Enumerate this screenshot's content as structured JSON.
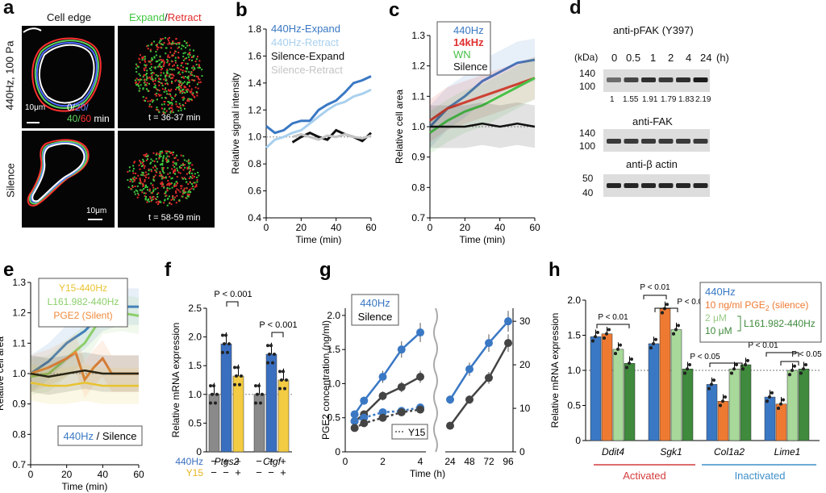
{
  "panels": {
    "a": {
      "letter": "a",
      "col_cell_edge": "Cell edge",
      "col_expand": "Expand",
      "slash": "/",
      "col_retract": "Retract",
      "row1_label": "440Hz, 100 Pa",
      "row2_label": "Silence",
      "scale1": "10μm",
      "scale2": "10μm",
      "time1": "0/",
      "time2": "20/",
      "time3": "40/",
      "time4": "60",
      "time_unit": " min",
      "t1": "t = 36-37 min",
      "t2": "t = 58-59 min",
      "colors": {
        "t0": "#ffffff",
        "t20": "#4f6bff",
        "t40": "#5fd35f",
        "t60": "#ff3030",
        "expand": "#3ec83e",
        "retract": "#e22b2b"
      }
    },
    "d": {
      "letter": "d",
      "antibody1": "anti-pFAK (Y397)",
      "kda": "(kDa)",
      "times": [
        "0",
        "0.5",
        "1",
        "2",
        "4",
        "24"
      ],
      "time_unit": "(h)",
      "mw_top": [
        "140",
        "100"
      ],
      "quant": [
        "1",
        "1.55",
        "1.91",
        "1.79",
        "1.83",
        "2.19"
      ],
      "antibody2": "anti-FAK",
      "mw_mid": [
        "140",
        "100"
      ],
      "antibody3": "anti-β actin",
      "mw_bot": [
        "50",
        "40"
      ]
    },
    "letters": {
      "b": "b",
      "c": "c",
      "e": "e",
      "f": "f",
      "g": "g",
      "h": "h"
    }
  },
  "chart_data": [
    {
      "panel": "b",
      "type": "line",
      "xlabel": "Time (min)",
      "ylabel": "Relative signal intensity",
      "xlim": [
        0,
        60
      ],
      "ylim": [
        0.4,
        1.8
      ],
      "xticks": [
        0,
        20,
        40,
        60
      ],
      "yticks": [
        0.4,
        0.6,
        0.8,
        1.0,
        1.2,
        1.4,
        1.6,
        1.8
      ],
      "legend": [
        "440Hz-Expand",
        "440Hz-Retract",
        "Silence-Expand",
        "Silence-Retract"
      ],
      "series": [
        {
          "name": "440Hz-Expand",
          "color": "#3a78c4",
          "x": [
            0,
            5,
            10,
            15,
            20,
            25,
            30,
            35,
            40,
            45,
            50,
            55,
            60
          ],
          "values": [
            1.08,
            1.03,
            1.05,
            1.1,
            1.12,
            1.12,
            1.2,
            1.24,
            1.27,
            1.33,
            1.4,
            1.42,
            1.45
          ]
        },
        {
          "name": "440Hz-Retract",
          "color": "#a9d0ee",
          "x": [
            0,
            5,
            10,
            15,
            20,
            25,
            30,
            35,
            40,
            45,
            50,
            55,
            60
          ],
          "values": [
            0.92,
            0.98,
            1.0,
            1.03,
            1.05,
            1.1,
            1.15,
            1.2,
            1.24,
            1.26,
            1.3,
            1.32,
            1.35
          ]
        },
        {
          "name": "Silence-Expand",
          "color": "#111111",
          "x": [
            15,
            20,
            25,
            30,
            35,
            40,
            45,
            50,
            55,
            60
          ],
          "values": [
            0.96,
            1.0,
            1.03,
            1.0,
            0.98,
            1.05,
            1.02,
            1.0,
            0.97,
            1.03
          ]
        },
        {
          "name": "Silence-Retract",
          "color": "#c4c4c4",
          "x": [
            15,
            20,
            25,
            30,
            35,
            40,
            45,
            50,
            55,
            60
          ],
          "values": [
            1.0,
            1.02,
            1.0,
            0.98,
            1.01,
            1.0,
            1.02,
            1.0,
            0.99,
            1.01
          ]
        }
      ]
    },
    {
      "panel": "c",
      "type": "line",
      "xlabel": "Time (min)",
      "ylabel": "Relative cell area",
      "xlim": [
        0,
        60
      ],
      "ylim": [
        0.7,
        1.3
      ],
      "xticks": [
        0,
        20,
        40,
        60
      ],
      "yticks": [
        0.7,
        0.8,
        0.9,
        1.0,
        1.1,
        1.2,
        1.3
      ],
      "legend": [
        "440Hz",
        "14kHz",
        "WN",
        "Silence"
      ],
      "series": [
        {
          "name": "440Hz",
          "color": "#3a78c4",
          "x": [
            0,
            10,
            20,
            30,
            40,
            50,
            60
          ],
          "values": [
            1.0,
            1.06,
            1.1,
            1.15,
            1.18,
            1.21,
            1.22
          ]
        },
        {
          "name": "14kHz",
          "color": "#e03030",
          "x": [
            0,
            10,
            20,
            30,
            40,
            50,
            60
          ],
          "values": [
            1.02,
            1.06,
            1.08,
            1.1,
            1.12,
            1.14,
            1.16
          ]
        },
        {
          "name": "WN",
          "color": "#48c048",
          "x": [
            0,
            10,
            20,
            30,
            40,
            50,
            60
          ],
          "values": [
            0.98,
            1.02,
            1.05,
            1.07,
            1.1,
            1.13,
            1.16
          ]
        },
        {
          "name": "Silence",
          "color": "#111111",
          "x": [
            0,
            10,
            20,
            30,
            40,
            50,
            60
          ],
          "values": [
            1.0,
            1.0,
            1.0,
            1.01,
            1.0,
            1.01,
            1.0
          ]
        }
      ]
    },
    {
      "panel": "e",
      "type": "line",
      "xlabel": "Time (min)",
      "ylabel": "Relative cell area",
      "xlim": [
        0,
        60
      ],
      "ylim": [
        0.7,
        1.3
      ],
      "xticks": [
        0,
        20,
        40,
        60
      ],
      "yticks": [
        0.7,
        0.8,
        0.9,
        1.0,
        1.1,
        1.2,
        1.3
      ],
      "legend": [
        "Y15-440Hz",
        "L161.982-440Hz",
        "PGE2 (Silent)"
      ],
      "legend2": [
        "440Hz",
        " / ",
        "Silence"
      ],
      "series": [
        {
          "name": "440Hz",
          "color": "#3a78c4",
          "x": [
            0,
            10,
            20,
            30,
            40,
            50,
            60
          ],
          "values": [
            1.0,
            1.04,
            1.1,
            1.14,
            1.2,
            1.22,
            1.22
          ]
        },
        {
          "name": "L161.982-440Hz",
          "color": "#8ccf6a",
          "x": [
            0,
            10,
            20,
            30,
            40,
            50,
            60
          ],
          "values": [
            0.99,
            1.0,
            1.05,
            1.1,
            1.19,
            1.2,
            1.19
          ]
        },
        {
          "name": "PGE2 (Silent)",
          "color": "#ef8a3c",
          "x": [
            0,
            10,
            20,
            25,
            30,
            35,
            40,
            45,
            50,
            60
          ],
          "values": [
            1.0,
            1.02,
            1.05,
            1.07,
            0.98,
            1.02,
            1.05,
            1.0,
            1.0,
            1.0
          ]
        },
        {
          "name": "Silence",
          "color": "#111111",
          "x": [
            0,
            10,
            20,
            30,
            40,
            50,
            60
          ],
          "values": [
            1.0,
            0.99,
            1.0,
            1.01,
            1.0,
            1.0,
            1.0
          ]
        },
        {
          "name": "Y15-440Hz",
          "color": "#e8c330",
          "x": [
            0,
            10,
            20,
            30,
            40,
            50,
            60
          ],
          "values": [
            0.97,
            0.96,
            0.96,
            0.97,
            0.96,
            0.96,
            0.96
          ]
        }
      ]
    },
    {
      "panel": "f",
      "type": "bar",
      "ylabel": "Relative mRNA expression",
      "ylim": [
        0,
        2.5
      ],
      "yticks": [
        0,
        0.5,
        1.0,
        1.5,
        2.0,
        2.5
      ],
      "genes": [
        "Ptgs2",
        "Ctgf"
      ],
      "row_labels": [
        "440Hz",
        "Y15"
      ],
      "row_signs": {
        "440Hz": [
          "−",
          "+",
          "+"
        ],
        "Y15": [
          "−",
          "−",
          "+"
        ]
      },
      "pvalues": [
        "P < 0.001",
        "P < 0.001"
      ],
      "series": [
        {
          "group": "Ptgs2",
          "colors": [
            "#8a8a8a",
            "#3a6fc0",
            "#f3cc43"
          ],
          "values": [
            1.0,
            1.88,
            1.32
          ]
        },
        {
          "group": "Ctgf",
          "colors": [
            "#8a8a8a",
            "#3a6fc0",
            "#f3cc43"
          ],
          "values": [
            1.0,
            1.7,
            1.25
          ]
        }
      ]
    },
    {
      "panel": "g",
      "type": "line",
      "xlabel": "Time (h)",
      "ylabel": "PGE2 concentration (ng/ml)",
      "left_xticks": [
        0,
        2,
        4
      ],
      "left_ylim": [
        0,
        2.0
      ],
      "left_yticks": [
        0,
        0.5,
        1.0,
        1.5,
        2.0
      ],
      "right_xticks": [
        24,
        48,
        72,
        96
      ],
      "right_ylim": [
        0,
        33
      ],
      "right_yticks": [
        0,
        10,
        20,
        30
      ],
      "legend": [
        "440Hz",
        "Silence"
      ],
      "y15_label": "Y15",
      "series": [
        {
          "name": "440Hz",
          "color": "#3a78c4",
          "x": [
            0.5,
            1,
            2,
            3,
            4
          ],
          "values": [
            0.55,
            0.75,
            1.1,
            1.5,
            1.75
          ]
        },
        {
          "name": "Silence",
          "color": "#444444",
          "x": [
            0.5,
            1,
            2,
            3,
            4
          ],
          "values": [
            0.45,
            0.55,
            0.82,
            0.95,
            1.1
          ]
        },
        {
          "name": "440Hz Y15",
          "color": "#3a78c4",
          "x": [
            0.5,
            1,
            2,
            3,
            4
          ],
          "values": [
            0.45,
            0.5,
            0.58,
            0.6,
            0.65
          ]
        },
        {
          "name": "Silence Y15",
          "color": "#444444",
          "x": [
            0.5,
            1,
            2,
            3,
            4
          ],
          "values": [
            0.35,
            0.42,
            0.5,
            0.58,
            0.62
          ]
        },
        {
          "name": "440Hz long",
          "color": "#3a78c4",
          "x": [
            24,
            48,
            72,
            96
          ],
          "values": [
            12,
            19,
            25,
            30
          ]
        },
        {
          "name": "Silence long",
          "color": "#444444",
          "x": [
            24,
            48,
            72,
            96
          ],
          "values": [
            6,
            12,
            17,
            25
          ]
        }
      ]
    },
    {
      "panel": "h",
      "type": "bar",
      "ylabel": "Relative mRNA expression",
      "ylim": [
        0,
        2.0
      ],
      "yticks": [
        0,
        0.5,
        1.0,
        1.5,
        2.0
      ],
      "genes": [
        "Ddit4",
        "Sgk1",
        "Col1a2",
        "Lime1"
      ],
      "legend": {
        "a": "440Hz",
        "b": "10 ng/ml PGE",
        "b2": "2",
        "b3": " (silence)",
        "c": "2 μM",
        "d": "10 μM",
        "e": "L161.982-440Hz"
      },
      "pvalues": [
        "P < 0.01",
        "P < 0.01",
        "P < 0.01",
        "P < 0.05",
        "P < 0.01",
        "P < 0.05"
      ],
      "group_labels": [
        "Activated",
        "Inactivated"
      ],
      "colors": [
        "#3a78c4",
        "#ee7a32",
        "#a8d89a",
        "#3f8a3c"
      ],
      "series": [
        {
          "group": "Ddit4",
          "values": [
            1.48,
            1.52,
            1.3,
            1.1
          ]
        },
        {
          "group": "Sgk1",
          "values": [
            1.38,
            1.88,
            1.58,
            1.02
          ]
        },
        {
          "group": "Col1a2",
          "values": [
            0.8,
            0.56,
            1.02,
            1.08
          ]
        },
        {
          "group": "Lime1",
          "values": [
            0.62,
            0.52,
            1.0,
            1.02
          ]
        }
      ]
    }
  ]
}
